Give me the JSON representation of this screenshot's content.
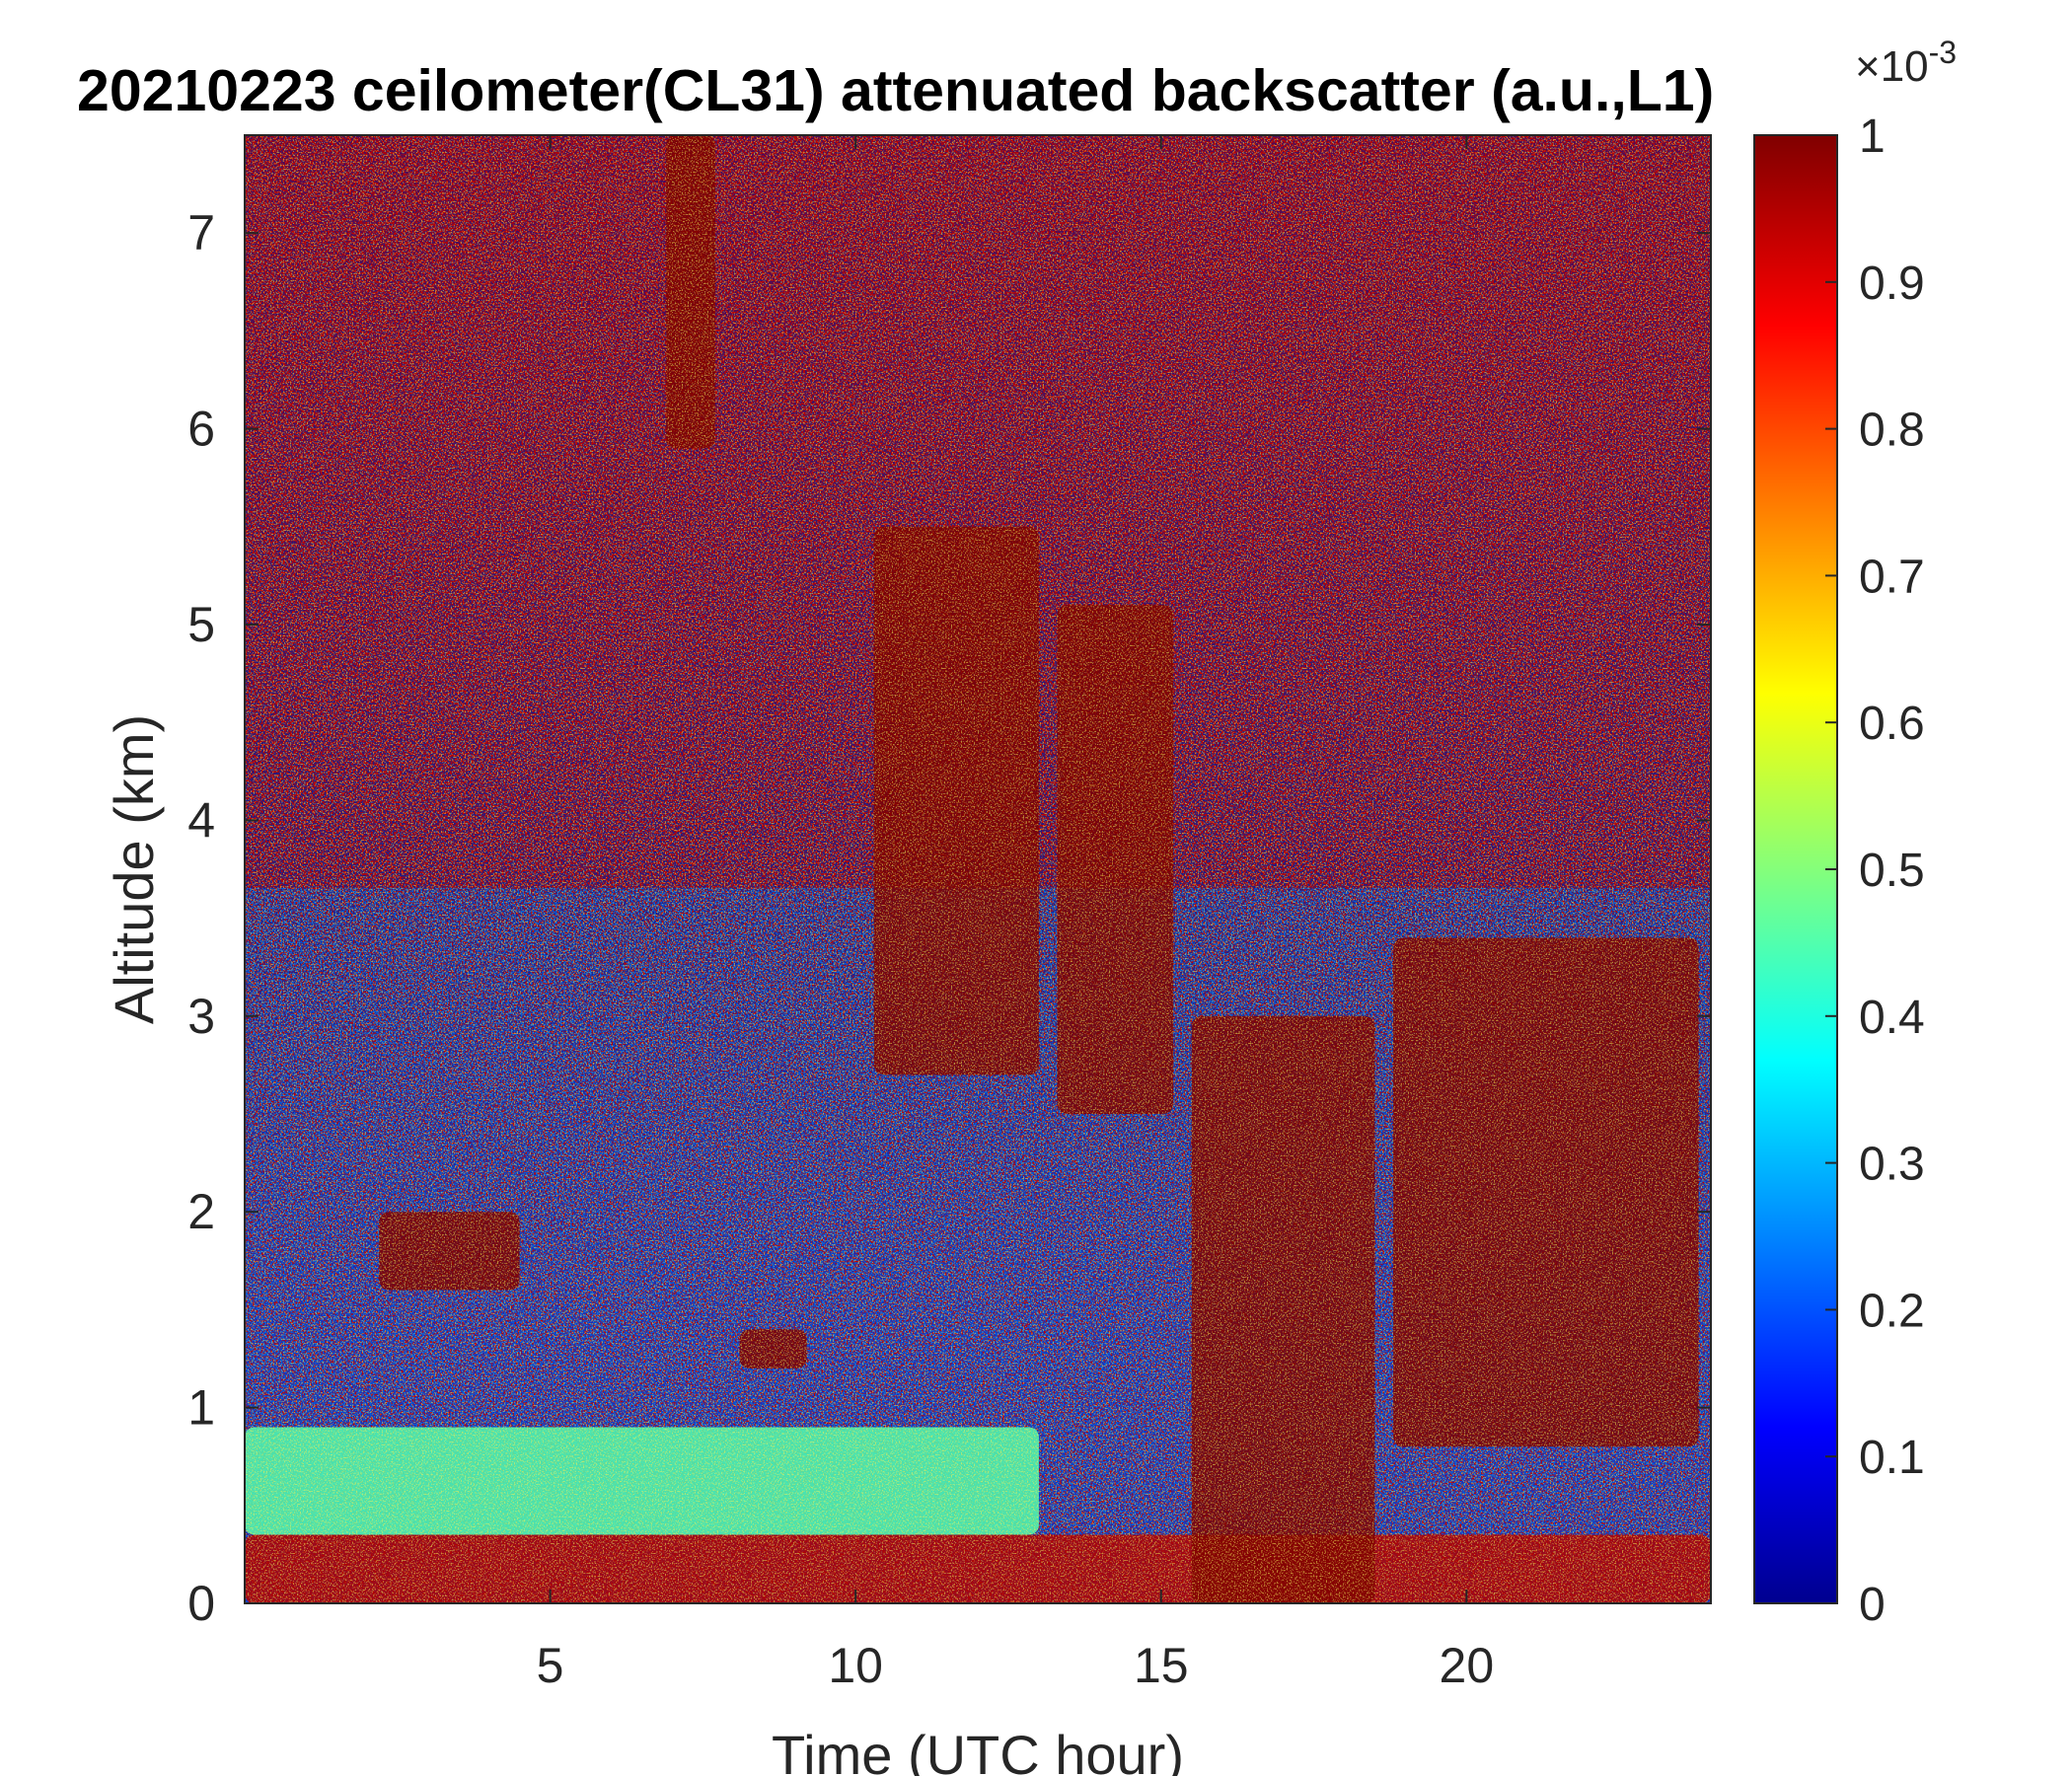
{
  "chart_data": {
    "type": "heatmap",
    "title": "20210223 ceilometer(CL31) attenuated backscatter (a.u.,L1)",
    "xlabel": "Time (UTC hour)",
    "ylabel": "Altitude (km)",
    "xlim": [
      0,
      24
    ],
    "ylim": [
      0,
      7.5
    ],
    "xticks": [
      5,
      10,
      15,
      20
    ],
    "yticks": [
      0,
      1,
      2,
      3,
      4,
      5,
      6,
      7
    ],
    "colorbar": {
      "colormap": "jet",
      "range": [
        0,
        1
      ],
      "ticks": [
        0,
        0.1,
        0.2,
        0.3,
        0.4,
        0.5,
        0.6,
        0.7,
        0.8,
        0.9,
        1
      ],
      "exponent_label": "×10",
      "exponent": "-3"
    },
    "features": [
      {
        "name": "surface layer",
        "x": [
          0,
          24
        ],
        "y": [
          0,
          0.35
        ],
        "level": 0.95
      },
      {
        "name": "boundary layer",
        "x": [
          0,
          13
        ],
        "y": [
          0.35,
          0.9
        ],
        "level": 0.45
      },
      {
        "name": "cloud patch",
        "x": [
          2.2,
          4.5
        ],
        "y": [
          1.6,
          2.0
        ],
        "level": 1.0
      },
      {
        "name": "cloud patch",
        "x": [
          8.1,
          9.2
        ],
        "y": [
          1.2,
          1.4
        ],
        "level": 1.0
      },
      {
        "name": "cloud column",
        "x": [
          10.3,
          13.0
        ],
        "y": [
          2.7,
          5.5
        ],
        "level": 1.0
      },
      {
        "name": "cloud column",
        "x": [
          13.3,
          15.2
        ],
        "y": [
          2.5,
          5.1
        ],
        "level": 1.0
      },
      {
        "name": "precipitation",
        "x": [
          15.5,
          18.5
        ],
        "y": [
          0,
          3.0
        ],
        "level": 1.0
      },
      {
        "name": "cloud column",
        "x": [
          18.8,
          23.8
        ],
        "y": [
          0.8,
          3.4
        ],
        "level": 1.0
      },
      {
        "name": "virga streak",
        "x": [
          6.9,
          7.7
        ],
        "y": [
          5.9,
          7.5
        ],
        "level": 1.0
      }
    ]
  }
}
